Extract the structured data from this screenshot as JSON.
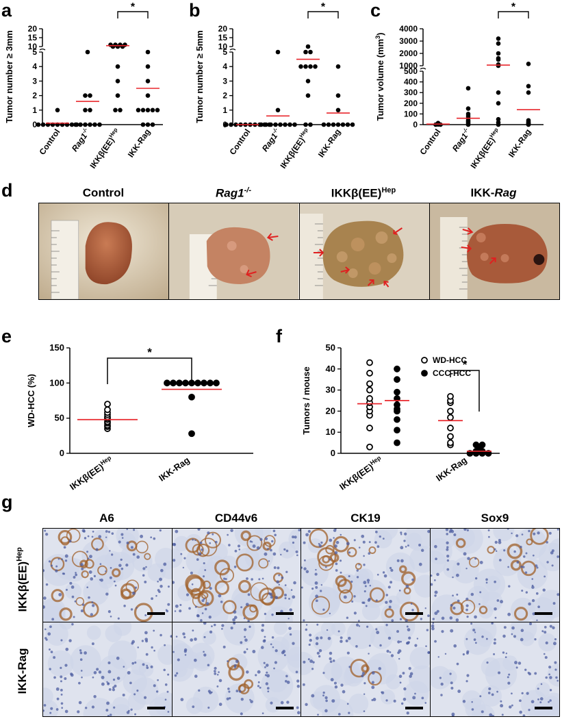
{
  "panel_letters": [
    "a",
    "b",
    "c",
    "d",
    "e",
    "f",
    "g"
  ],
  "groups_abc": [
    "Control",
    "Rag1",
    "IKKβ(EE)",
    "IKK-Rag"
  ],
  "group_sups": {
    "rag": "-/-",
    "hep": "Hep"
  },
  "sig": "*",
  "chart_data": [
    {
      "panel": "a",
      "type": "scatter",
      "ylabel": "Tumor number ≥ 3mm",
      "categories": [
        "Control",
        "Rag1-/-",
        "IKKβ(EE)Hep",
        "IKK-Rag"
      ],
      "yticks_lower": [
        "0",
        "1",
        "2",
        "3",
        "4",
        "5"
      ],
      "yticks_upper": [
        "10",
        "15",
        "20"
      ],
      "ylim_lower": [
        0,
        5
      ],
      "ylim_upper": [
        10,
        20
      ],
      "series": [
        {
          "values": [
            0,
            0,
            0,
            0,
            0,
            0,
            0,
            0,
            0,
            1
          ]
        },
        {
          "values": [
            0,
            0,
            0,
            0,
            0,
            0,
            1,
            1,
            2,
            2,
            5
          ]
        },
        {
          "values": [
            1,
            1,
            2,
            3,
            4,
            10,
            10,
            10,
            11,
            11,
            11,
            11
          ]
        },
        {
          "values": [
            0,
            0,
            0,
            1,
            1,
            1,
            1,
            1,
            2,
            3,
            4,
            5
          ]
        }
      ],
      "means": [
        0.1,
        1.6,
        10.5,
        2.5
      ],
      "significance": {
        "between": [
          2,
          3
        ],
        "label": "*"
      }
    },
    {
      "panel": "b",
      "type": "scatter",
      "ylabel": "Tumor number ≥ 5mm",
      "categories": [
        "Control",
        "Rag1-/-",
        "IKKβ(EE)Hep",
        "IKK-Rag"
      ],
      "yticks_lower": [
        "0",
        "1",
        "2",
        "3",
        "4",
        "5"
      ],
      "yticks_upper": [
        "10",
        "15",
        "20"
      ],
      "ylim_lower": [
        0,
        5
      ],
      "ylim_upper": [
        10,
        20
      ],
      "series": [
        {
          "values": [
            0,
            0,
            0,
            0,
            0,
            0,
            0,
            0,
            0,
            0
          ]
        },
        {
          "values": [
            0,
            0,
            0,
            0,
            0,
            0,
            0,
            0,
            1,
            5
          ]
        },
        {
          "values": [
            0,
            0,
            2,
            3,
            4,
            4,
            4,
            4,
            5,
            5,
            6
          ]
        },
        {
          "values": [
            0,
            0,
            0,
            0,
            0,
            0,
            0,
            1,
            2,
            4
          ]
        }
      ],
      "means": [
        0,
        0.6,
        4.5,
        0.8
      ],
      "significance": {
        "between": [
          2,
          3
        ],
        "label": "*"
      }
    },
    {
      "panel": "c",
      "type": "scatter",
      "ylabel": "Tumor volume (mm",
      "ylabel_sup": "3",
      "ylabel_end": ")",
      "categories": [
        "Control",
        "Rag1-/-",
        "IKKβ(EE)Hep",
        "IKK-Rag"
      ],
      "yticks_lower": [
        "0",
        "100",
        "200",
        "300",
        "400",
        "500"
      ],
      "yticks_upper": [
        "1000",
        "2000",
        "3000",
        "4000"
      ],
      "ylim_lower": [
        0,
        500
      ],
      "ylim_upper": [
        1000,
        4000
      ],
      "series": [
        {
          "values": [
            0,
            0,
            2,
            3,
            4,
            5,
            6,
            8,
            10,
            12,
            15
          ]
        },
        {
          "values": [
            0,
            10,
            20,
            30,
            40,
            60,
            80,
            100,
            150,
            340
          ]
        },
        {
          "values": [
            0,
            20,
            50,
            200,
            300,
            1000,
            1100,
            1500,
            1600,
            2000,
            2800,
            3200
          ]
        },
        {
          "values": [
            0,
            2,
            5,
            10,
            15,
            20,
            30,
            40,
            300,
            360,
            1150
          ]
        }
      ],
      "means": [
        5,
        60,
        1050,
        140
      ],
      "significance": {
        "between": [
          2,
          3
        ],
        "label": "*"
      }
    },
    {
      "panel": "e",
      "type": "scatter",
      "ylabel": "WD-HCC (%)",
      "categories": [
        "IKKβ(EE)Hep",
        "IKK-Rag"
      ],
      "yticks": [
        "0",
        "50",
        "100",
        "150"
      ],
      "ylim": [
        0,
        150
      ],
      "series": [
        {
          "marker": "open",
          "values": [
            35,
            38,
            40,
            43,
            45,
            48,
            50,
            52,
            55,
            58,
            62,
            70
          ]
        },
        {
          "marker": "filled",
          "values": [
            28,
            80,
            100,
            100,
            100,
            100,
            100,
            100,
            100,
            100,
            100
          ]
        }
      ],
      "means": [
        48,
        91
      ],
      "significance": {
        "between": [
          0,
          1
        ],
        "label": "*"
      }
    },
    {
      "panel": "f",
      "type": "scatter",
      "ylabel": "Tumors / mouse",
      "categories": [
        "IKKβ(EE)Hep",
        "IKK-Rag"
      ],
      "yticks": [
        "0",
        "10",
        "20",
        "30",
        "40",
        "50"
      ],
      "ylim": [
        0,
        50
      ],
      "legend": [
        "WD-HCC",
        "CCC-HCC"
      ],
      "series": [
        {
          "name": "WD-HCC",
          "group": 0,
          "marker": "open",
          "values": [
            3,
            12,
            18,
            20,
            22,
            24,
            26,
            30,
            33,
            38,
            43
          ]
        },
        {
          "name": "CCC-HCC",
          "group": 0,
          "marker": "filled",
          "values": [
            5,
            11,
            16,
            20,
            21,
            23,
            26,
            29,
            35,
            40
          ]
        },
        {
          "name": "WD-HCC",
          "group": 1,
          "marker": "open",
          "values": [
            4,
            5,
            8,
            12,
            17,
            20,
            24,
            25,
            27
          ]
        },
        {
          "name": "CCC-HCC",
          "group": 1,
          "marker": "filled",
          "values": [
            0,
            0,
            0,
            0,
            1,
            1,
            2,
            4,
            4
          ]
        }
      ],
      "means": [
        23.5,
        25,
        15.5,
        1
      ],
      "significance": {
        "between": [
          2,
          3
        ],
        "label": "*"
      }
    }
  ],
  "panel_d": {
    "titles": [
      "Control",
      "Rag1",
      "IKKβ(EE)",
      "IKK-"
    ],
    "title_sup_rag": "-/-",
    "title_sup_hep": "Hep",
    "title_italic_rag": "Rag",
    "ruler_label": "cm"
  },
  "panel_g": {
    "columns": [
      "A6",
      "CD44v6",
      "CK19",
      "Sox9"
    ],
    "rows": [
      "IKKβ(EE)",
      "IKK-Rag"
    ],
    "row_sup": "Hep"
  },
  "colors": {
    "mean_line": "#e8262c",
    "stain": "#a0602a",
    "tissue": "#c7d1e6",
    "liver": "#b5603a"
  }
}
